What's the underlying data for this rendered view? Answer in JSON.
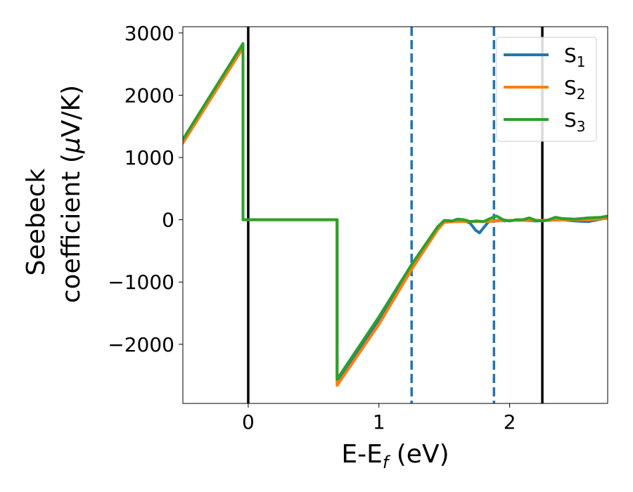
{
  "chart_data": {
    "type": "line",
    "xlabel": "E-E",
    "xlabel_sub": "f",
    "xlabel_unit": " (eV)",
    "ylabel_line1": "Seebeck",
    "ylabel_line2": "coefficient  (",
    "ylabel_mu": "μ",
    "ylabel_unit": "V/K)",
    "xlim": [
      -0.5,
      2.75
    ],
    "ylim": [
      -2950,
      3100
    ],
    "xticks": [
      0,
      1,
      2
    ],
    "xtick_labels": [
      "0",
      "1",
      "2"
    ],
    "yticks": [
      -2000,
      -1000,
      0,
      1000,
      2000,
      3000
    ],
    "ytick_labels": [
      "−2000",
      "−1000",
      "0",
      "1000",
      "2000",
      "3000"
    ],
    "legend": {
      "placement": "top-right",
      "entries": [
        {
          "base": "S",
          "sub": "1",
          "color": "#1f77b4"
        },
        {
          "base": "S",
          "sub": "2",
          "color": "#ff7f0e"
        },
        {
          "base": "S",
          "sub": "3",
          "color": "#2ca02c"
        }
      ]
    },
    "vlines": [
      {
        "x": 0.0,
        "color": "#000000",
        "style": "solid"
      },
      {
        "x": 2.25,
        "color": "#000000",
        "style": "solid"
      },
      {
        "x": 1.25,
        "color": "#1f77b4",
        "style": "dashed"
      },
      {
        "x": 1.88,
        "color": "#1f77b4",
        "style": "dashed"
      }
    ],
    "series": [
      {
        "color": "#1f77b4",
        "x": [
          -0.5,
          -0.04,
          -0.04,
          0.68,
          0.68,
          1.0,
          1.25,
          1.45,
          1.5,
          1.55,
          1.6,
          1.65,
          1.7,
          1.74,
          1.77,
          1.8,
          1.84,
          1.88,
          1.92,
          1.96,
          2.0,
          2.1,
          2.2,
          2.3,
          2.4,
          2.5,
          2.6,
          2.7,
          2.75
        ],
        "y": [
          1270,
          2770,
          0,
          0,
          -2600,
          -1600,
          -760,
          -130,
          -30,
          -20,
          -30,
          -10,
          -60,
          -170,
          -210,
          -130,
          -30,
          -20,
          -10,
          -20,
          -10,
          -10,
          -20,
          -10,
          0,
          -20,
          -30,
          10,
          40
        ]
      },
      {
        "color": "#ff7f0e",
        "x": [
          -0.5,
          -0.04,
          -0.04,
          0.68,
          0.68,
          1.0,
          1.25,
          1.45,
          1.5,
          1.6,
          1.7,
          1.8,
          1.9,
          2.0,
          2.2,
          2.4,
          2.6,
          2.75
        ],
        "y": [
          1230,
          2760,
          0,
          0,
          -2660,
          -1680,
          -800,
          -160,
          -40,
          -30,
          -30,
          -30,
          -20,
          -10,
          -10,
          0,
          0,
          20
        ]
      },
      {
        "color": "#2ca02c",
        "x": [
          -0.5,
          -0.04,
          -0.04,
          0.68,
          0.68,
          1.0,
          1.25,
          1.45,
          1.5,
          1.56,
          1.6,
          1.65,
          1.7,
          1.75,
          1.8,
          1.85,
          1.9,
          1.95,
          2.0,
          2.05,
          2.1,
          2.15,
          2.2,
          2.25,
          2.3,
          2.35,
          2.4,
          2.5,
          2.6,
          2.7,
          2.75
        ],
        "y": [
          1290,
          2830,
          0,
          0,
          -2560,
          -1560,
          -720,
          -110,
          -10,
          -20,
          10,
          0,
          -30,
          -20,
          -30,
          20,
          60,
          0,
          -20,
          0,
          0,
          30,
          -10,
          -20,
          0,
          40,
          20,
          10,
          30,
          40,
          60
        ]
      }
    ]
  }
}
